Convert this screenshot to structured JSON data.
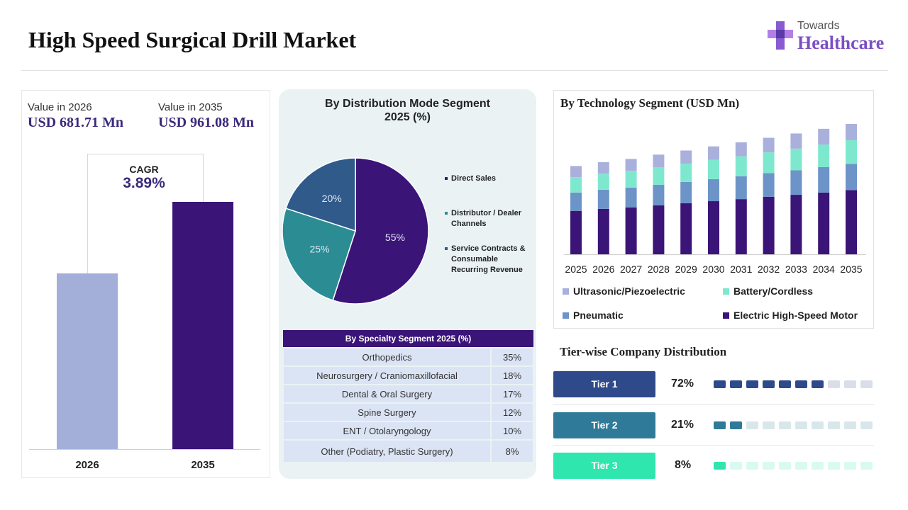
{
  "header": {
    "title": "High Speed Surgical Drill Market",
    "logo_top": "Towards",
    "logo_main": "Healthcare"
  },
  "market_value": {
    "label_2026": "Value in 2026",
    "value_2026": "USD 681.71 Mn",
    "label_2035": "Value in 2035",
    "value_2035": "USD 961.08 Mn",
    "cagr_label": "CAGR",
    "cagr_value": "3.89%"
  },
  "distribution": {
    "title_line1": "By Distribution Mode Segment",
    "title_line2": "2025 (%)",
    "legend_1": "Direct Sales",
    "legend_2a": "Distributor / Dealer",
    "legend_2b": "Channels",
    "legend_3a": "Service Contracts &",
    "legend_3b": "Consumable",
    "legend_3c": "Recurring Revenue"
  },
  "specialty": {
    "header": "By Specialty Segment 2025 (%)",
    "rows": [
      [
        "Orthopedics",
        "35%"
      ],
      [
        "Neurosurgery / Craniomaxillofacial",
        "18%"
      ],
      [
        "Dental & Oral Surgery",
        "17%"
      ],
      [
        "Spine Surgery",
        "12%"
      ],
      [
        "ENT / Otolaryngology",
        "10%"
      ],
      [
        "Other (Podiatry, Plastic Surgery)",
        "8%"
      ]
    ]
  },
  "technology": {
    "title": "By Technology Segment (USD Mn)"
  },
  "tiers": {
    "title": "Tier-wise Company Distribution",
    "items": [
      {
        "label": "Tier 1",
        "pct": "72%",
        "color": "#2e4a8a",
        "filled": 7
      },
      {
        "label": "Tier 2",
        "pct": "21%",
        "color": "#2f7a98",
        "filled": 2
      },
      {
        "label": "Tier 3",
        "pct": "8%",
        "color": "#2ee6ae",
        "filled": 1
      }
    ]
  },
  "chart_data": [
    {
      "type": "bar",
      "categories": [
        "2026",
        "2035"
      ],
      "values": [
        681.71,
        961.08
      ]
    },
    {
      "type": "pie",
      "title": "By Distribution Mode Segment 2025 (%)",
      "categories": [
        "Direct Sales",
        "Distributor / Dealer Channels",
        "Service Contracts & Consumable Recurring Revenue"
      ],
      "values": [
        55,
        25,
        20
      ],
      "labels": [
        "55%",
        "25%",
        "20%"
      ],
      "colors": [
        "#3b1478",
        "#2b8c94",
        "#2f5a8a"
      ]
    },
    {
      "type": "bar",
      "stacked": true,
      "title": "By Technology Segment (USD Mn)",
      "categories": [
        "2025",
        "2026",
        "2027",
        "2028",
        "2029",
        "2030",
        "2031",
        "2032",
        "2033",
        "2034",
        "2035"
      ],
      "series": [
        {
          "name": "Electric High-Speed Motor",
          "color": "#3b1478",
          "values": [
            232,
            243,
            250,
            262,
            273,
            284,
            295,
            307,
            318,
            330,
            343
          ]
        },
        {
          "name": "Pneumatic",
          "color": "#6d94c8",
          "values": [
            98,
            102,
            106,
            110,
            114,
            118,
            122,
            127,
            131,
            136,
            141
          ]
        },
        {
          "name": "Battery/Cordless",
          "color": "#7ee8cf",
          "values": [
            82,
            86,
            90,
            94,
            98,
            103,
            107,
            111,
            116,
            121,
            126
          ]
        },
        {
          "name": "Ultrasonic/Piezoelectric",
          "color": "#aab0dc",
          "values": [
            60,
            62,
            64,
            67,
            70,
            72,
            75,
            78,
            81,
            84,
            87
          ]
        }
      ]
    }
  ]
}
